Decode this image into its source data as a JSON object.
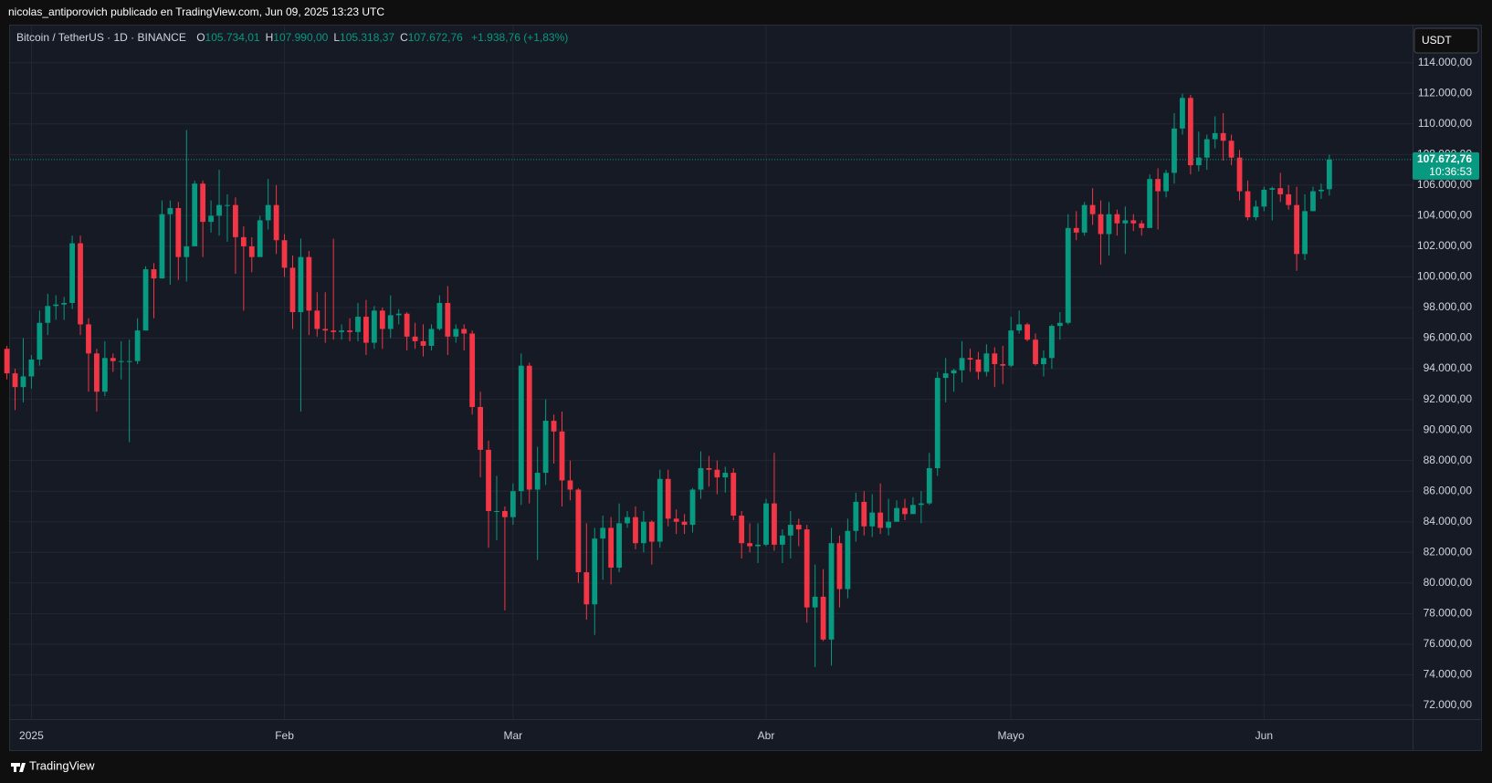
{
  "header": "nicolas_antiporovich publicado en TradingView.com, Jun 09, 2025 13:23 UTC",
  "footer": "TradingView",
  "chart_data": {
    "type": "candlestick",
    "symbol": "Bitcoin / TetherUS · 1D · BINANCE",
    "legend": [
      {
        "key": "O",
        "value": "105.734,01"
      },
      {
        "key": "H",
        "value": "107.990,00"
      },
      {
        "key": "L",
        "value": "105.318,37"
      },
      {
        "key": "C",
        "value": "107.672,76"
      }
    ],
    "change": "+1.938,76 (+1,83%)",
    "currency": "USDT",
    "last_price_label": "107.672,76",
    "countdown": "10:36:53",
    "up_color": "#089981",
    "down_color": "#f23645",
    "grid": true,
    "open": [
      95300,
      93700,
      92800,
      93500,
      94600,
      97000,
      98100,
      98200,
      98300,
      102200,
      96900,
      95000,
      92500,
      94700,
      94500,
      94500,
      94500,
      96500,
      100500,
      99900,
      104100,
      104500,
      101300,
      102000,
      106100,
      103600,
      104000,
      104700,
      104700,
      102600,
      102000,
      101300,
      103700,
      104700,
      102400,
      100600,
      97700,
      101300,
      97800,
      96600,
      96500,
      96400,
      96500,
      96400,
      97400,
      95700,
      97800,
      96600,
      97500,
      97600,
      96100,
      95800,
      95500,
      96600,
      98300,
      96100,
      96600,
      96300,
      91500,
      88700,
      84700,
      84700,
      84300,
      86000,
      94200,
      86100,
      87200,
      90600,
      89900,
      86700,
      86100,
      80700,
      78600,
      82900,
      83600,
      81000,
      83900,
      84300,
      82600,
      84000,
      82700,
      86800,
      84200,
      84000,
      83800,
      86100,
      87500,
      87400,
      86900,
      87200,
      84400,
      82600,
      82400,
      82500,
      85200,
      82500,
      83100,
      83800,
      83500,
      78400,
      79100,
      76300,
      82600,
      79600,
      83400,
      85300,
      83700,
      84600,
      83600,
      84000,
      84900,
      84500,
      85100,
      85200,
      87500,
      93400,
      93700,
      93900,
      94700,
      94600,
      93800,
      95000,
      94300,
      94200,
      96500,
      96900,
      95900,
      94300,
      94700,
      96800,
      97000,
      103200,
      102900,
      104700,
      104100,
      102800,
      104100,
      103500,
      103700,
      103500,
      103200,
      106400,
      105600,
      106800,
      109700,
      111700,
      107300,
      107800,
      109000,
      109400,
      108900,
      107800,
      105600,
      103900,
      104600,
      105700,
      105800,
      105400,
      104700,
      101500,
      104300,
      105600,
      105734.01
    ],
    "high": [
      95500,
      94000,
      96000,
      94900,
      97800,
      98900,
      98800,
      98700,
      102700,
      102700,
      97300,
      95300,
      95800,
      95000,
      95800,
      95900,
      97300,
      100700,
      100900,
      105000,
      105000,
      104900,
      109600,
      106300,
      106300,
      105000,
      107000,
      105400,
      105200,
      103300,
      102600,
      104000,
      106400,
      106000,
      102800,
      101400,
      102500,
      101700,
      99000,
      99000,
      102500,
      96900,
      97300,
      98300,
      98500,
      98100,
      98000,
      98800,
      97900,
      97700,
      97000,
      96900,
      96900,
      98800,
      99400,
      96900,
      96900,
      96500,
      92500,
      89300,
      87000,
      85000,
      86500,
      95000,
      94400,
      88900,
      92000,
      91000,
      91200,
      88000,
      86200,
      83900,
      83600,
      84400,
      84300,
      85200,
      84700,
      85000,
      84700,
      84100,
      87400,
      87400,
      84800,
      84500,
      86200,
      88600,
      88300,
      88000,
      87600,
      87500,
      84700,
      83900,
      83900,
      85500,
      88500,
      83500,
      84700,
      84200,
      83800,
      81200,
      80900,
      83600,
      83100,
      84200,
      85900,
      86000,
      85800,
      86500,
      85500,
      85400,
      85500,
      85600,
      86000,
      88500,
      93800,
      94700,
      94000,
      95800,
      95300,
      95100,
      95600,
      95400,
      95500,
      97400,
      97800,
      97000,
      96300,
      95200,
      96900,
      97700,
      104100,
      104300,
      104900,
      105800,
      105000,
      104900,
      104400,
      104600,
      104100,
      103700,
      106700,
      107100,
      107000,
      110700,
      111980,
      111900,
      109500,
      109300,
      110500,
      110700,
      109300,
      108300,
      106300,
      105000,
      105900,
      105900,
      106800,
      106000,
      105900,
      105400,
      105900,
      106100,
      107990
    ],
    "low": [
      93300,
      91300,
      91800,
      92700,
      94200,
      96200,
      97200,
      97200,
      97900,
      96200,
      92500,
      91200,
      92200,
      93800,
      93300,
      89200,
      94300,
      96500,
      97300,
      99900,
      99500,
      99800,
      99700,
      102300,
      101300,
      102900,
      102700,
      102300,
      100200,
      97800,
      100300,
      101300,
      103100,
      101500,
      100000,
      96600,
      91200,
      96200,
      96100,
      95700,
      95900,
      95900,
      95800,
      95800,
      94900,
      95300,
      95300,
      96000,
      96900,
      95200,
      95300,
      94800,
      95200,
      96500,
      94900,
      95700,
      95200,
      91000,
      86900,
      82300,
      82800,
      78200,
      83800,
      85100,
      85200,
      81500,
      86400,
      87800,
      85000,
      85400,
      80000,
      77600,
      76600,
      80200,
      79900,
      80700,
      83600,
      82200,
      82000,
      81200,
      82300,
      83700,
      83200,
      83200,
      83300,
      85500,
      86300,
      85800,
      85900,
      84100,
      81600,
      82000,
      81300,
      82400,
      82100,
      81300,
      81600,
      82400,
      77400,
      74500,
      76200,
      74600,
      78400,
      79000,
      82700,
      83100,
      83000,
      83200,
      83100,
      84200,
      84100,
      84600,
      83900,
      85100,
      87000,
      91800,
      92500,
      93100,
      93800,
      93300,
      93500,
      92800,
      93000,
      94100,
      96300,
      95800,
      94200,
      93500,
      94000,
      95900,
      96900,
      102400,
      102700,
      103400,
      100800,
      101400,
      102700,
      101500,
      103000,
      102700,
      103200,
      103100,
      105200,
      106100,
      109300,
      106700,
      106900,
      107000,
      108400,
      107600,
      107300,
      105000,
      103700,
      103700,
      104300,
      103700,
      104900,
      104400,
      100400,
      101100,
      104300,
      105100,
      105318.37
    ],
    "close": [
      93700,
      92800,
      93500,
      94600,
      97000,
      98100,
      98200,
      98300,
      102200,
      96900,
      95000,
      92500,
      94700,
      94500,
      94500,
      94500,
      96500,
      100500,
      99900,
      104100,
      104500,
      101300,
      102000,
      106100,
      103600,
      104000,
      104700,
      104700,
      102600,
      102000,
      101300,
      103700,
      104700,
      102400,
      100600,
      97700,
      101300,
      97800,
      96600,
      96500,
      96400,
      96500,
      96400,
      97400,
      95700,
      97800,
      96600,
      97500,
      97600,
      96100,
      95800,
      95500,
      96600,
      98300,
      96100,
      96600,
      96300,
      91500,
      88700,
      84700,
      84700,
      84300,
      86000,
      94200,
      86100,
      87200,
      90600,
      89900,
      86700,
      86100,
      80700,
      78600,
      82900,
      83600,
      81000,
      83900,
      84300,
      82600,
      84000,
      82700,
      86800,
      84200,
      84000,
      83800,
      86100,
      87500,
      87400,
      86900,
      87200,
      84400,
      82600,
      82400,
      82500,
      85200,
      82500,
      83100,
      83800,
      83500,
      78400,
      79100,
      76300,
      82600,
      79600,
      83400,
      85300,
      83700,
      84600,
      83600,
      84000,
      84900,
      84500,
      85100,
      85200,
      87500,
      93400,
      93700,
      93900,
      94700,
      94600,
      93800,
      95000,
      94300,
      94200,
      96500,
      96900,
      95900,
      94300,
      94700,
      96800,
      97000,
      103200,
      102900,
      104700,
      104100,
      102800,
      104100,
      103500,
      103700,
      103500,
      103200,
      106400,
      105600,
      106800,
      109700,
      111700,
      107300,
      107800,
      109000,
      109400,
      108900,
      107800,
      105600,
      103900,
      104600,
      105700,
      105800,
      105400,
      104700,
      101500,
      104300,
      105600,
      105700,
      107672.76
    ],
    "xticks": [
      {
        "value": 3,
        "label": "2025"
      },
      {
        "value": 34,
        "label": "Feb"
      },
      {
        "value": 62,
        "label": "Mar"
      },
      {
        "value": 93,
        "label": "Abr"
      },
      {
        "value": 123,
        "label": "Mayo"
      },
      {
        "value": 154,
        "label": "Jun"
      }
    ],
    "ylim": [
      71100,
      116430
    ],
    "yticks": [
      {
        "value": 72000,
        "label": "72.000,00"
      },
      {
        "value": 74000,
        "label": "74.000,00"
      },
      {
        "value": 76000,
        "label": "76.000,00"
      },
      {
        "value": 78000,
        "label": "78.000,00"
      },
      {
        "value": 80000,
        "label": "80.000,00"
      },
      {
        "value": 82000,
        "label": "82.000,00"
      },
      {
        "value": 84000,
        "label": "84.000,00"
      },
      {
        "value": 86000,
        "label": "86.000,00"
      },
      {
        "value": 88000,
        "label": "88.000,00"
      },
      {
        "value": 90000,
        "label": "90.000,00"
      },
      {
        "value": 92000,
        "label": "92.000,00"
      },
      {
        "value": 94000,
        "label": "94.000,00"
      },
      {
        "value": 96000,
        "label": "96.000,00"
      },
      {
        "value": 98000,
        "label": "98.000,00"
      },
      {
        "value": 100000,
        "label": "100.000,00"
      },
      {
        "value": 102000,
        "label": "102.000,00"
      },
      {
        "value": 104000,
        "label": "104.000,00"
      },
      {
        "value": 106000,
        "label": "106.000,00"
      },
      {
        "value": 108000,
        "label": "108.000,00"
      },
      {
        "value": 110000,
        "label": "110.000,00"
      },
      {
        "value": 112000,
        "label": "112.000,00"
      },
      {
        "value": 114000,
        "label": "114.000,00"
      }
    ]
  }
}
